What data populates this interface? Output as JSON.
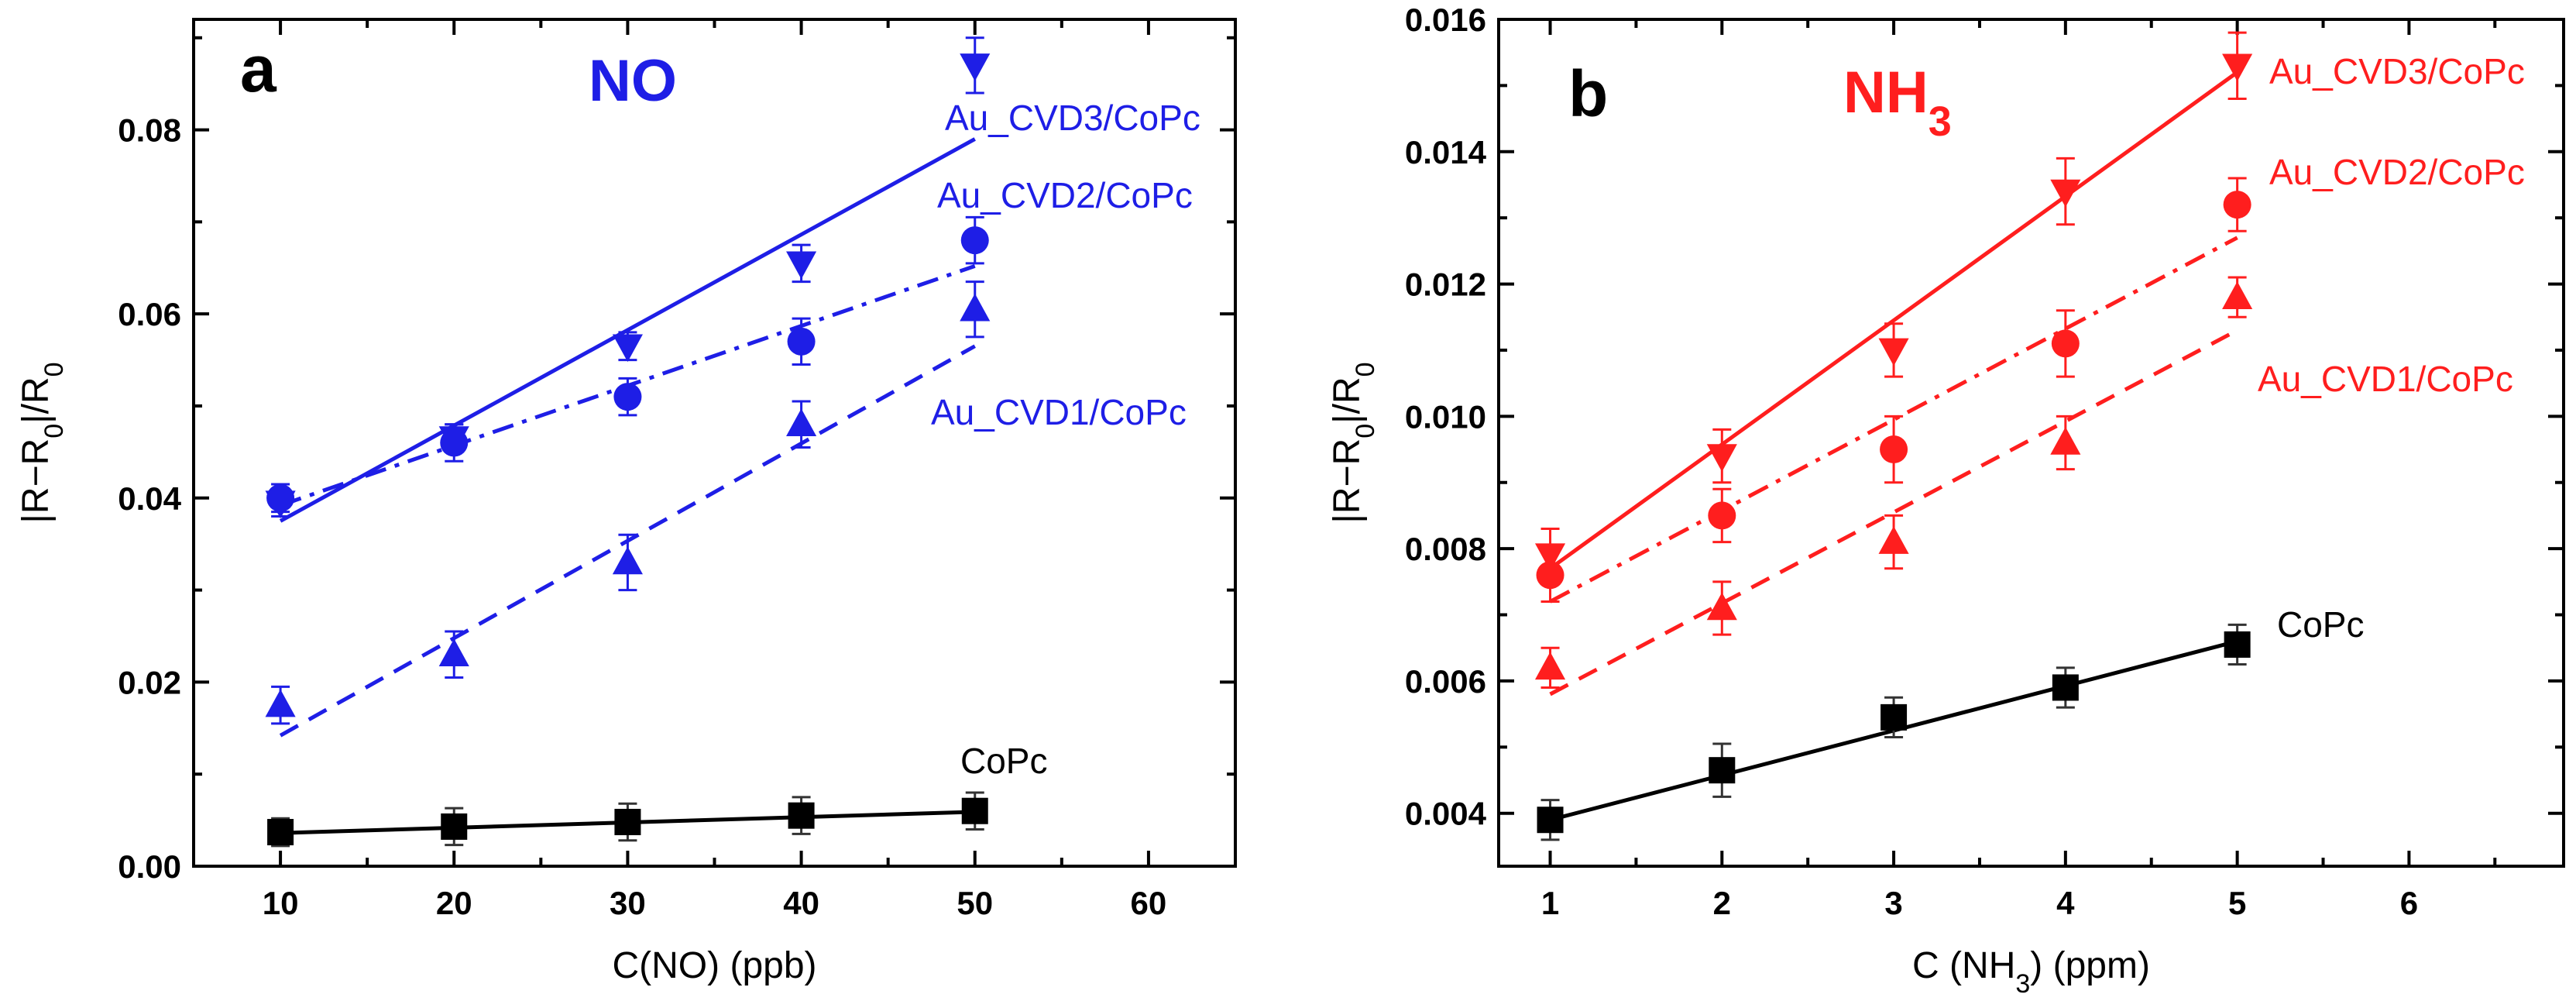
{
  "chart_data": [
    {
      "panel": "a",
      "type": "scatter",
      "title": "NO",
      "title_color": "#1e1ee6",
      "xlabel": "C(NO) (ppb)",
      "ylabel": "|R−R0|/R0",
      "xlim": [
        5,
        65
      ],
      "ylim": [
        0,
        0.092
      ],
      "xticks": [
        10,
        20,
        30,
        40,
        50,
        60
      ],
      "xtick_labels": [
        "10",
        "20",
        "30",
        "40",
        "50",
        "60"
      ],
      "yticks": [
        0,
        0.02,
        0.04,
        0.06,
        0.08
      ],
      "ytick_labels": [
        "0.00",
        "0.02",
        "0.04",
        "0.06",
        "0.08"
      ],
      "series": [
        {
          "name": "Au_CVD3/CoPc",
          "label": "Au_CVD3/CoPc",
          "color": "#1e1ee6",
          "marker": "triangle-down",
          "line": "solid",
          "x": [
            10,
            20,
            30,
            40,
            50
          ],
          "y": [
            0.0395,
            0.0465,
            0.0565,
            0.0655,
            0.087
          ],
          "err": [
            0.0015,
            0.0015,
            0.0015,
            0.002,
            0.003
          ],
          "fit": {
            "x": [
              10,
              50
            ],
            "y": [
              0.0375,
              0.079
            ]
          }
        },
        {
          "name": "Au_CVD2/CoPc",
          "label": "Au_CVD2/CoPc",
          "color": "#1e1ee6",
          "marker": "circle",
          "line": "dashdot",
          "x": [
            10,
            20,
            30,
            40,
            50
          ],
          "y": [
            0.04,
            0.046,
            0.051,
            0.057,
            0.068
          ],
          "err": [
            0.0015,
            0.002,
            0.002,
            0.0025,
            0.0025
          ],
          "fit": {
            "x": [
              10,
              50
            ],
            "y": [
              0.0392,
              0.0652
            ]
          }
        },
        {
          "name": "Au_CVD1/CoPc",
          "label": "Au_CVD1/CoPc",
          "color": "#1e1ee6",
          "marker": "triangle-up",
          "line": "dashed",
          "x": [
            10,
            20,
            30,
            40,
            50
          ],
          "y": [
            0.0175,
            0.023,
            0.033,
            0.048,
            0.0605
          ],
          "err": [
            0.002,
            0.0025,
            0.003,
            0.0025,
            0.003
          ],
          "fit": {
            "x": [
              10,
              50
            ],
            "y": [
              0.0142,
              0.0565
            ]
          }
        },
        {
          "name": "CoPc",
          "label": "CoPc",
          "color": "#000000",
          "marker": "square",
          "line": "solid",
          "x": [
            10,
            20,
            30,
            40,
            50
          ],
          "y": [
            0.0037,
            0.0043,
            0.0048,
            0.0055,
            0.006
          ],
          "err": [
            0.0015,
            0.002,
            0.002,
            0.002,
            0.002
          ],
          "fit": {
            "x": [
              10,
              50
            ],
            "y": [
              0.0036,
              0.0059
            ]
          }
        }
      ]
    },
    {
      "panel": "b",
      "type": "scatter",
      "title": "NH3",
      "title_main": "NH",
      "title_sub": "3",
      "title_color": "#ff1e1e",
      "xlabel": "C (NH3) (ppm)",
      "xlabel_main": "C (NH",
      "xlabel_sub": "3",
      "xlabel_tail": ") (ppm)",
      "ylabel": "|R−R0|/R0",
      "xlim": [
        0.7,
        6.9
      ],
      "ylim": [
        0.0032,
        0.016
      ],
      "xticks": [
        1,
        2,
        3,
        4,
        5,
        6
      ],
      "xtick_labels": [
        "1",
        "2",
        "3",
        "4",
        "5",
        "6"
      ],
      "yticks": [
        0.004,
        0.006,
        0.008,
        0.01,
        0.012,
        0.014,
        0.016
      ],
      "ytick_labels": [
        "0.004",
        "0.006",
        "0.008",
        "0.010",
        "0.012",
        "0.014",
        "0.016"
      ],
      "series": [
        {
          "name": "Au_CVD3/CoPc",
          "label": "Au_CVD3/CoPc",
          "color": "#ff1e1e",
          "marker": "triangle-down",
          "line": "solid",
          "x": [
            1,
            2,
            3,
            4,
            5
          ],
          "y": [
            0.0079,
            0.0094,
            0.011,
            0.0134,
            0.0153
          ],
          "err": [
            0.0004,
            0.0004,
            0.0004,
            0.0005,
            0.0005
          ],
          "fit": {
            "x": [
              1,
              5
            ],
            "y": [
              0.0077,
              0.0152
            ]
          }
        },
        {
          "name": "Au_CVD2/CoPc",
          "label": "Au_CVD2/CoPc",
          "color": "#ff1e1e",
          "marker": "circle",
          "line": "dashdot",
          "x": [
            1,
            2,
            3,
            4,
            5
          ],
          "y": [
            0.0076,
            0.0085,
            0.0095,
            0.0111,
            0.0132
          ],
          "err": [
            0.0004,
            0.0004,
            0.0005,
            0.0005,
            0.0004
          ],
          "fit": {
            "x": [
              1,
              5
            ],
            "y": [
              0.0072,
              0.0127
            ]
          }
        },
        {
          "name": "Au_CVD1/CoPc",
          "label": "Au_CVD1/CoPc",
          "color": "#ff1e1e",
          "marker": "triangle-up",
          "line": "dashed",
          "x": [
            1,
            2,
            3,
            4,
            5
          ],
          "y": [
            0.0062,
            0.0071,
            0.0081,
            0.0096,
            0.0118
          ],
          "err": [
            0.0003,
            0.0004,
            0.0004,
            0.0004,
            0.0003
          ],
          "fit": {
            "x": [
              1,
              5
            ],
            "y": [
              0.0058,
              0.0113
            ]
          }
        },
        {
          "name": "CoPc",
          "label": "CoPc",
          "color": "#000000",
          "marker": "square",
          "line": "solid",
          "x": [
            1,
            2,
            3,
            4,
            5
          ],
          "y": [
            0.0039,
            0.00465,
            0.00545,
            0.0059,
            0.00655
          ],
          "err": [
            0.0003,
            0.0004,
            0.0003,
            0.0003,
            0.0003
          ],
          "fit": {
            "x": [
              1,
              5
            ],
            "y": [
              0.0039,
              0.0066
            ]
          }
        }
      ]
    }
  ]
}
